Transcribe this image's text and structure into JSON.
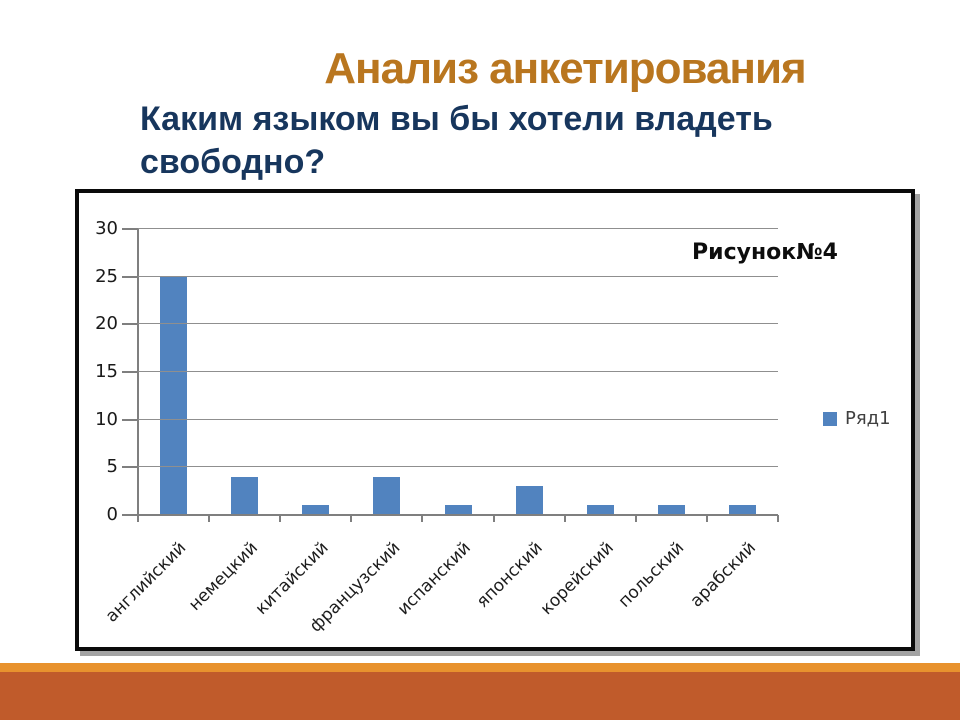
{
  "slide": {
    "title": "Анализ анкетирования",
    "question_line1": "Каким языком вы бы хотели владеть",
    "question_line2": "свободно?",
    "colors": {
      "title": "#B9761F",
      "question": "#17365D",
      "bar": "#5183BF",
      "gridline": "#8F8F8F",
      "axis": "#7F7F7F",
      "chart_frame_border": "#0A0A0A",
      "chart_frame_shadow": "#A3A3A3",
      "footer_strip_light": "#E8922E",
      "footer_band_dark": "#C05B2B"
    }
  },
  "chart_data": {
    "type": "bar",
    "title": "Рисунок№4",
    "categories": [
      "английский",
      "немецкий",
      "китайский",
      "французский",
      "испанский",
      "японский",
      "корейский",
      "польский",
      "арабский"
    ],
    "series": [
      {
        "name": "Ряд1",
        "values": [
          25,
          4,
          1,
          4,
          1,
          3,
          1,
          1,
          1
        ]
      }
    ],
    "ylim": [
      0,
      30
    ],
    "yticks": [
      0,
      5,
      10,
      15,
      20,
      25,
      30
    ],
    "grid": true,
    "legend_position": "right",
    "xlabel": "",
    "ylabel": ""
  }
}
